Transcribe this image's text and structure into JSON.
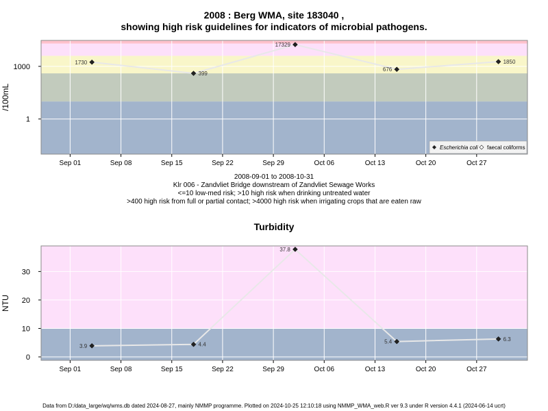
{
  "titles": {
    "main_line1": "2008 : Berg WMA, site 183040 ,",
    "main_line2": "showing high risk guidelines for indicators of microbial pathogens.",
    "turbidity": "Turbidity"
  },
  "notes": {
    "date_range": "2008-09-01 to 2008-10-31",
    "site": "Klr 006 - Zandvliet Bridge downstream of Zandvliet Sewage Works",
    "risk1": "<=10 low-med risk; >10 high risk when drinking untreated water",
    "risk2": ">400 high risk from full or partial contact; >4000 high risk when irrigating crops that are eaten raw"
  },
  "footer": "Data from D:/data_large/wq/wms.db dated 2024-08-27, mainly NMMP programme. Plotted on 2024-10-25 12:10:18 using NMMP_WMA_web.R ver 9.3 under R version 4.4.1 (2024-06-14 ucrt)",
  "chart_data": [
    {
      "type": "line",
      "ylabel": "/100mL",
      "yscale": "log10",
      "xlim": [
        "2008-08-28",
        "2008-11-03"
      ],
      "x_ticks": [
        "Sep 01",
        "Sep 08",
        "Sep 15",
        "Sep 22",
        "Sep 29",
        "Oct 06",
        "Oct 13",
        "Oct 20",
        "Oct 27"
      ],
      "y_ticks": [
        "1",
        "1000"
      ],
      "grid": true,
      "legend_position": "bottom-right",
      "series": [
        {
          "name": "Escherichia coli",
          "marker": "filled-diamond",
          "points": [
            {
              "date": "2008-09-04",
              "value": 1730,
              "label": "1730"
            },
            {
              "date": "2008-09-18",
              "value": 399,
              "label": "399"
            },
            {
              "date": "2008-10-02",
              "value": 17329,
              "label": "17329"
            },
            {
              "date": "2008-10-16",
              "value": 676,
              "label": "676"
            },
            {
              "date": "2008-10-30",
              "value": 1850,
              "label": "1850"
            }
          ]
        },
        {
          "name": "faecal coliforms",
          "marker": "open-diamond",
          "points": []
        }
      ],
      "bands": [
        {
          "from": 0.01,
          "to": 10,
          "color": "#a2b4cc"
        },
        {
          "from": 10,
          "to": 400,
          "color": "#c2cbbd"
        },
        {
          "from": 400,
          "to": 4000,
          "color": "#f9f6c9"
        },
        {
          "from": 4000,
          "to": 20000,
          "color": "#fde0fa"
        },
        {
          "from": 20000,
          "to": 30000,
          "color": "#ffc1cc"
        }
      ]
    },
    {
      "type": "line",
      "title": "Turbidity",
      "ylabel": "NTU",
      "xlim": [
        "2008-08-28",
        "2008-11-03"
      ],
      "ylim": [
        -1.2,
        39
      ],
      "x_ticks": [
        "Sep 01",
        "Sep 08",
        "Sep 15",
        "Sep 22",
        "Sep 29",
        "Oct 06",
        "Oct 13",
        "Oct 20",
        "Oct 27"
      ],
      "y_ticks": [
        0,
        10,
        20,
        30
      ],
      "grid": true,
      "series": [
        {
          "name": "",
          "marker": "filled-diamond",
          "points": [
            {
              "date": "2008-09-04",
              "value": 3.9,
              "label": "3.9"
            },
            {
              "date": "2008-09-18",
              "value": 4.4,
              "label": "4.4"
            },
            {
              "date": "2008-10-02",
              "value": 37.8,
              "label": "37.8"
            },
            {
              "date": "2008-10-16",
              "value": 5.4,
              "label": "5.4"
            },
            {
              "date": "2008-10-30",
              "value": 6.3,
              "label": "6.3"
            }
          ]
        }
      ],
      "bands": [
        {
          "from": -1.2,
          "to": 10,
          "color": "#a2b4cc"
        },
        {
          "from": 10,
          "to": 39,
          "color": "#fde0fa"
        }
      ]
    }
  ]
}
